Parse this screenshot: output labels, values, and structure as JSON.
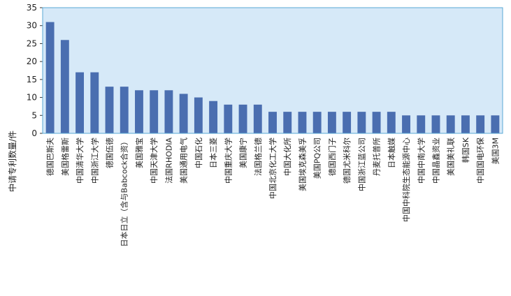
{
  "chart_data": {
    "type": "bar",
    "ylabel": "中请专利数量/件",
    "ylim": [
      0,
      35
    ],
    "yticks": [
      0,
      5,
      10,
      15,
      20,
      25,
      30,
      35
    ],
    "categories": [
      "德国巴斯夫",
      "美国格雷斯",
      "中国清华大学",
      "中国浙江大学",
      "德国伍德",
      "日本日立（含与Babcock合资）",
      "美国雅宝",
      "中国天津大学",
      "法国RHODIA",
      "美国通用电气",
      "中国石化",
      "日本三菱",
      "中国重庆大学",
      "美国康宁",
      "法国格兰德",
      "中国北京化工大学",
      "中国大化所",
      "美国埃克森美孚",
      "美国PQ公司",
      "德国西门子",
      "德国尤米科尔",
      "中国浙江蓝公司",
      "丹麦托普所",
      "日本触媒",
      "中国中科院生态能源中心",
      "中国中南大学",
      "中国晶鑫资业",
      "美国美礼联",
      "韩国SK",
      "中国国电环保",
      "美国3M"
    ],
    "values": [
      31,
      26,
      17,
      17,
      13,
      13,
      12,
      12,
      12,
      11,
      10,
      9,
      8,
      8,
      8,
      6,
      6,
      6,
      6,
      6,
      6,
      6,
      6,
      6,
      5,
      5,
      5,
      5,
      5,
      5,
      5
    ],
    "grid": false,
    "colors": {
      "plot_bg": "#d6e9f8",
      "bar": "#4a6eb0",
      "frame": "#5aa9d6"
    }
  }
}
